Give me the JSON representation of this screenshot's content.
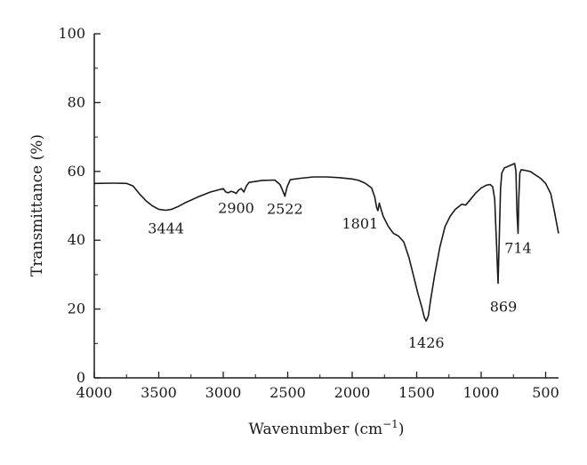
{
  "chart_data": {
    "type": "line",
    "xlabel": "Wavenumber (cm",
    "xlabel_sup": "−1",
    "xlabel_close": ")",
    "ylabel": "Transmittance (%)",
    "xlim": [
      4000,
      400
    ],
    "ylim": [
      0,
      100
    ],
    "x_ticks": [
      4000,
      3500,
      3000,
      2500,
      2000,
      1500,
      1000,
      500
    ],
    "y_ticks": [
      0,
      20,
      40,
      60,
      80,
      100
    ],
    "grid": false,
    "series": [
      {
        "color": "#1a1a1a",
        "points": [
          [
            4000,
            56.5
          ],
          [
            3850,
            56.6
          ],
          [
            3750,
            56.5
          ],
          [
            3700,
            55.8
          ],
          [
            3650,
            53.5
          ],
          [
            3600,
            51.5
          ],
          [
            3550,
            50.0
          ],
          [
            3500,
            49.0
          ],
          [
            3444,
            48.7
          ],
          [
            3400,
            49.0
          ],
          [
            3350,
            49.8
          ],
          [
            3300,
            50.8
          ],
          [
            3200,
            52.5
          ],
          [
            3100,
            54.0
          ],
          [
            3000,
            55.0
          ],
          [
            2980,
            54.0
          ],
          [
            2960,
            53.8
          ],
          [
            2940,
            54.2
          ],
          [
            2920,
            54.0
          ],
          [
            2900,
            53.6
          ],
          [
            2880,
            54.6
          ],
          [
            2860,
            55.0
          ],
          [
            2840,
            54.0
          ],
          [
            2820,
            55.8
          ],
          [
            2800,
            56.8
          ],
          [
            2700,
            57.4
          ],
          [
            2600,
            57.5
          ],
          [
            2560,
            56.2
          ],
          [
            2540,
            54.5
          ],
          [
            2522,
            52.8
          ],
          [
            2505,
            55.5
          ],
          [
            2480,
            57.6
          ],
          [
            2400,
            58.0
          ],
          [
            2300,
            58.4
          ],
          [
            2200,
            58.4
          ],
          [
            2100,
            58.2
          ],
          [
            2000,
            57.8
          ],
          [
            1950,
            57.4
          ],
          [
            1900,
            56.6
          ],
          [
            1850,
            55.2
          ],
          [
            1825,
            52.5
          ],
          [
            1810,
            49.5
          ],
          [
            1801,
            48.6
          ],
          [
            1790,
            50.8
          ],
          [
            1778,
            49.2
          ],
          [
            1760,
            47.0
          ],
          [
            1720,
            44.0
          ],
          [
            1680,
            42.0
          ],
          [
            1640,
            41.2
          ],
          [
            1600,
            39.5
          ],
          [
            1560,
            35.0
          ],
          [
            1520,
            29.0
          ],
          [
            1490,
            24.5
          ],
          [
            1460,
            20.5
          ],
          [
            1440,
            17.5
          ],
          [
            1426,
            16.5
          ],
          [
            1410,
            18.0
          ],
          [
            1390,
            23.0
          ],
          [
            1360,
            30.0
          ],
          [
            1320,
            38.0
          ],
          [
            1280,
            44.0
          ],
          [
            1240,
            47.0
          ],
          [
            1200,
            49.0
          ],
          [
            1150,
            50.5
          ],
          [
            1120,
            50.2
          ],
          [
            1080,
            52.0
          ],
          [
            1040,
            53.8
          ],
          [
            1000,
            55.2
          ],
          [
            960,
            56.0
          ],
          [
            930,
            56.2
          ],
          [
            910,
            55.5
          ],
          [
            895,
            52.0
          ],
          [
            880,
            38.0
          ],
          [
            869,
            27.5
          ],
          [
            860,
            40.0
          ],
          [
            850,
            55.0
          ],
          [
            840,
            59.5
          ],
          [
            820,
            61.0
          ],
          [
            790,
            61.5
          ],
          [
            760,
            62.0
          ],
          [
            740,
            62.3
          ],
          [
            730,
            60.0
          ],
          [
            722,
            48.0
          ],
          [
            714,
            42.0
          ],
          [
            708,
            52.0
          ],
          [
            700,
            59.5
          ],
          [
            690,
            60.5
          ],
          [
            660,
            60.3
          ],
          [
            620,
            60.0
          ],
          [
            580,
            59.0
          ],
          [
            540,
            58.0
          ],
          [
            500,
            56.5
          ],
          [
            460,
            53.5
          ],
          [
            430,
            48.0
          ],
          [
            400,
            42.0
          ]
        ]
      }
    ],
    "annotations": [
      {
        "text": "3444",
        "x": 3444,
        "y": 48.7
      },
      {
        "text": "2900",
        "x": 2900,
        "y": 53.6
      },
      {
        "text": "2522",
        "x": 2522,
        "y": 52.8
      },
      {
        "text": "1801",
        "x": 1801,
        "y": 48.6
      },
      {
        "text": "1426",
        "x": 1426,
        "y": 16.5
      },
      {
        "text": "869",
        "x": 869,
        "y": 27.5
      },
      {
        "text": "714",
        "x": 714,
        "y": 42.0
      }
    ]
  }
}
